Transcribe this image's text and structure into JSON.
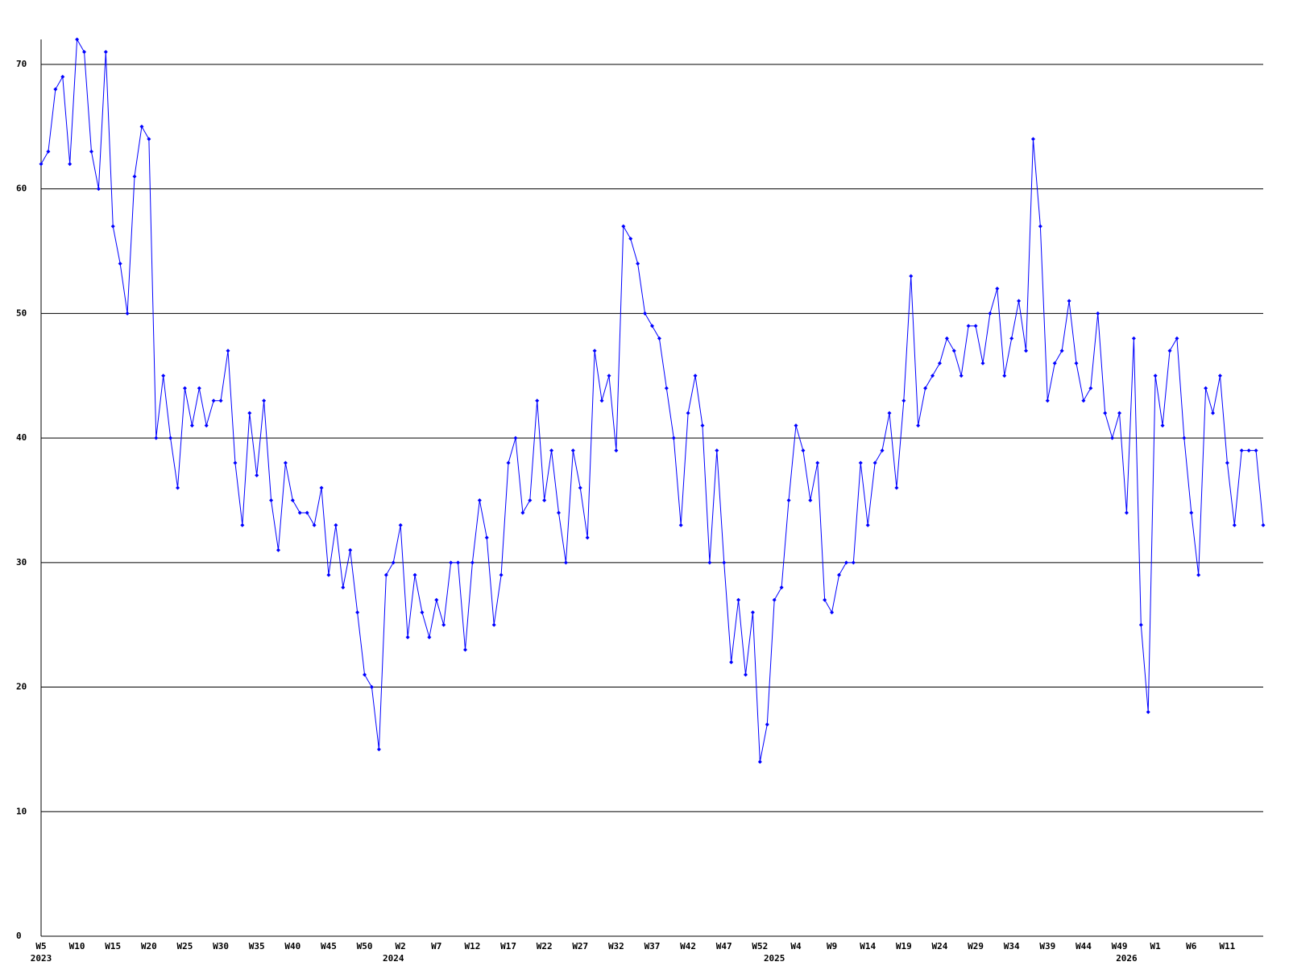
{
  "chart_data": {
    "type": "line",
    "categories": [
      "W5",
      null,
      null,
      null,
      null,
      "W10",
      null,
      null,
      null,
      null,
      "W15",
      null,
      null,
      null,
      null,
      "W20",
      null,
      null,
      null,
      null,
      "W25",
      null,
      null,
      null,
      null,
      "W30",
      null,
      null,
      null,
      null,
      "W35",
      null,
      null,
      null,
      null,
      "W40",
      null,
      null,
      null,
      null,
      "W45",
      null,
      null,
      null,
      null,
      "W50",
      null,
      null,
      null,
      null,
      "W2",
      null,
      null,
      null,
      null,
      "W7",
      null,
      null,
      null,
      null,
      "W12",
      null,
      null,
      null,
      null,
      "W17",
      null,
      null,
      null,
      null,
      "W22",
      null,
      null,
      null,
      null,
      "W27",
      null,
      null,
      null,
      null,
      "W32",
      null,
      null,
      null,
      null,
      "W37",
      null,
      null,
      null,
      null,
      "W42",
      null,
      null,
      null,
      null,
      "W47",
      null,
      null,
      null,
      null,
      "W52",
      null,
      null,
      null,
      null,
      "W4",
      null,
      null,
      null,
      null,
      "W9",
      null,
      null,
      null,
      null,
      "W14",
      null,
      null,
      null,
      null,
      "W19",
      null,
      null,
      null,
      null,
      "W24",
      null,
      null,
      null,
      null,
      "W29",
      null,
      null,
      null,
      null,
      "W34",
      null,
      null,
      null,
      null,
      "W39",
      null,
      null,
      null,
      null,
      "W44",
      null,
      null,
      null,
      null,
      "W49",
      null,
      null,
      null,
      null,
      "W1",
      null,
      null,
      null,
      null,
      "W6",
      null,
      null,
      null,
      null,
      "W11",
      null,
      null,
      null,
      null,
      null
    ],
    "category_years": [
      "2023",
      null,
      null,
      null,
      null,
      null,
      null,
      null,
      null,
      null,
      null,
      null,
      null,
      null,
      null,
      null,
      null,
      null,
      null,
      null,
      null,
      null,
      null,
      null,
      null,
      null,
      null,
      null,
      null,
      null,
      null,
      null,
      null,
      null,
      null,
      null,
      null,
      null,
      null,
      null,
      null,
      null,
      null,
      null,
      null,
      null,
      null,
      null,
      null,
      "2024",
      null,
      null,
      null,
      null,
      null,
      null,
      null,
      null,
      null,
      null,
      null,
      null,
      null,
      null,
      null,
      null,
      null,
      null,
      null,
      null,
      null,
      null,
      null,
      null,
      null,
      null,
      null,
      null,
      null,
      null,
      null,
      null,
      null,
      null,
      null,
      null,
      null,
      null,
      null,
      null,
      null,
      null,
      null,
      null,
      null,
      null,
      null,
      null,
      null,
      null,
      null,
      null,
      "2025",
      null,
      null,
      null,
      null,
      null,
      null,
      null,
      null,
      null,
      null,
      null,
      null,
      null,
      null,
      null,
      null,
      null,
      null,
      null,
      null,
      null,
      null,
      null,
      null,
      null,
      null,
      null,
      null,
      null,
      null,
      null,
      null,
      null,
      null,
      null,
      null,
      null,
      null,
      null,
      null,
      null,
      null,
      null,
      null,
      null,
      null,
      null,
      null,
      "2026",
      null,
      null,
      null,
      null,
      null,
      null,
      null,
      null,
      null,
      null,
      null,
      null,
      null,
      null,
      null
    ],
    "values": [
      62,
      63,
      68,
      69,
      62,
      72,
      71,
      63,
      60,
      71,
      57,
      54,
      50,
      61,
      65,
      64,
      40,
      45,
      40,
      36,
      44,
      41,
      44,
      41,
      43,
      43,
      47,
      38,
      33,
      42,
      37,
      43,
      35,
      31,
      38,
      35,
      34,
      34,
      33,
      36,
      29,
      33,
      28,
      31,
      26,
      21,
      20,
      15,
      29,
      30,
      33,
      24,
      29,
      26,
      24,
      27,
      25,
      30,
      30,
      23,
      30,
      35,
      32,
      25,
      29,
      38,
      40,
      34,
      35,
      43,
      35,
      39,
      34,
      30,
      39,
      36,
      32,
      47,
      43,
      45,
      39,
      57,
      56,
      54,
      50,
      49,
      48,
      44,
      40,
      33,
      42,
      45,
      41,
      30,
      39,
      30,
      22,
      27,
      21,
      26,
      14,
      17,
      27,
      28,
      35,
      41,
      39,
      35,
      38,
      27,
      26,
      29,
      30,
      30,
      38,
      33,
      38,
      39,
      42,
      36,
      43,
      53,
      41,
      44,
      45,
      46,
      48,
      47,
      45,
      49,
      49,
      46,
      50,
      52,
      45,
      48,
      51,
      47,
      64,
      57,
      43,
      46,
      47,
      51,
      46,
      43,
      44,
      50,
      42,
      40,
      42,
      34,
      48,
      25,
      18,
      45,
      41,
      47,
      48,
      40,
      34,
      29,
      44,
      42,
      45,
      38,
      33,
      39,
      39,
      39,
      33
    ],
    "color": "#0000ff",
    "ylim": [
      0,
      72
    ],
    "yticks": [
      0,
      10,
      20,
      30,
      40,
      50,
      60,
      70
    ],
    "grid": true
  }
}
